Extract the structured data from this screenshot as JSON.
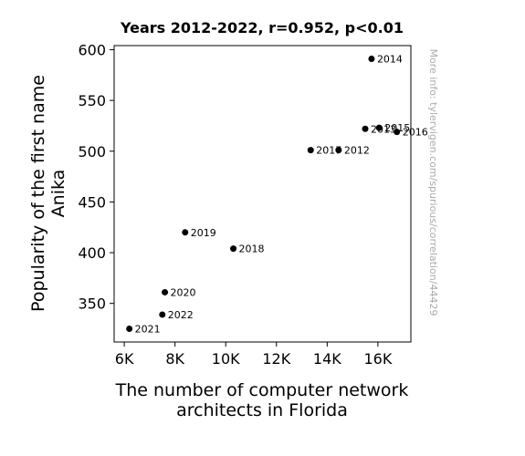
{
  "chart_data": {
    "type": "scatter",
    "title": "Years 2012-2022, r=0.952, p<0.01",
    "xlabel_lines": [
      "The number of computer network",
      "architects in Florida"
    ],
    "ylabel_lines": [
      "Popularity of the first name",
      "Anika"
    ],
    "xlim": [
      5600,
      17300
    ],
    "ylim": [
      312,
      604
    ],
    "xticks": [
      6000,
      8000,
      10000,
      12000,
      14000,
      16000
    ],
    "xtick_labels": [
      "6K",
      "8K",
      "10K",
      "12K",
      "14K",
      "16K"
    ],
    "yticks": [
      350,
      400,
      450,
      500,
      550,
      600
    ],
    "ytick_labels": [
      "350",
      "400",
      "450",
      "500",
      "550",
      "600"
    ],
    "points": [
      {
        "label": "2012",
        "x": 14450,
        "y": 501
      },
      {
        "label": "2013",
        "x": 15500,
        "y": 522
      },
      {
        "label": "2014",
        "x": 15750,
        "y": 591
      },
      {
        "label": "2015",
        "x": 16050,
        "y": 523
      },
      {
        "label": "2016",
        "x": 16750,
        "y": 519
      },
      {
        "label": "2017",
        "x": 13350,
        "y": 501
      },
      {
        "label": "2018",
        "x": 10300,
        "y": 404
      },
      {
        "label": "2019",
        "x": 8400,
        "y": 420
      },
      {
        "label": "2020",
        "x": 7600,
        "y": 361
      },
      {
        "label": "2021",
        "x": 6200,
        "y": 325
      },
      {
        "label": "2022",
        "x": 7500,
        "y": 339
      }
    ],
    "grid": false,
    "marker_color": "#000000"
  },
  "watermark": "More info: tylervigen.com/spurious/correlation/44429"
}
